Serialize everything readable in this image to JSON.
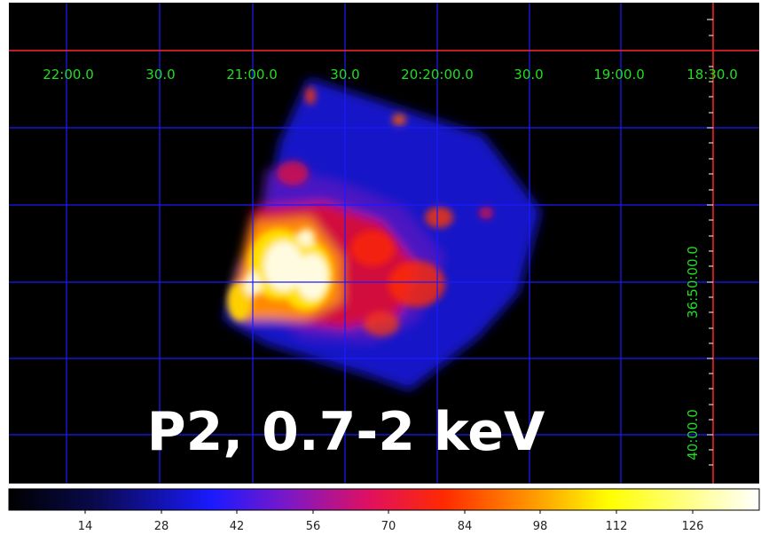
{
  "caption": "P2, 0.7-2 keV",
  "ra_axis": {
    "labels": [
      "22:00.0",
      "30.0",
      "21:00.0",
      "30.0",
      "20:20:00.0",
      "30.0",
      "19:00.0",
      "18:30.0"
    ]
  },
  "dec_axis": {
    "labels": [
      "36:50:00.0",
      "40:00.0"
    ]
  },
  "colorbar": {
    "ticks": [
      "14",
      "28",
      "42",
      "56",
      "70",
      "84",
      "98",
      "112",
      "126"
    ]
  },
  "colors": {
    "background": "#000000",
    "grid": "#1a1aff",
    "label": "#22dd22",
    "crosshair": "#ff2222",
    "caption": "#ffffff"
  }
}
